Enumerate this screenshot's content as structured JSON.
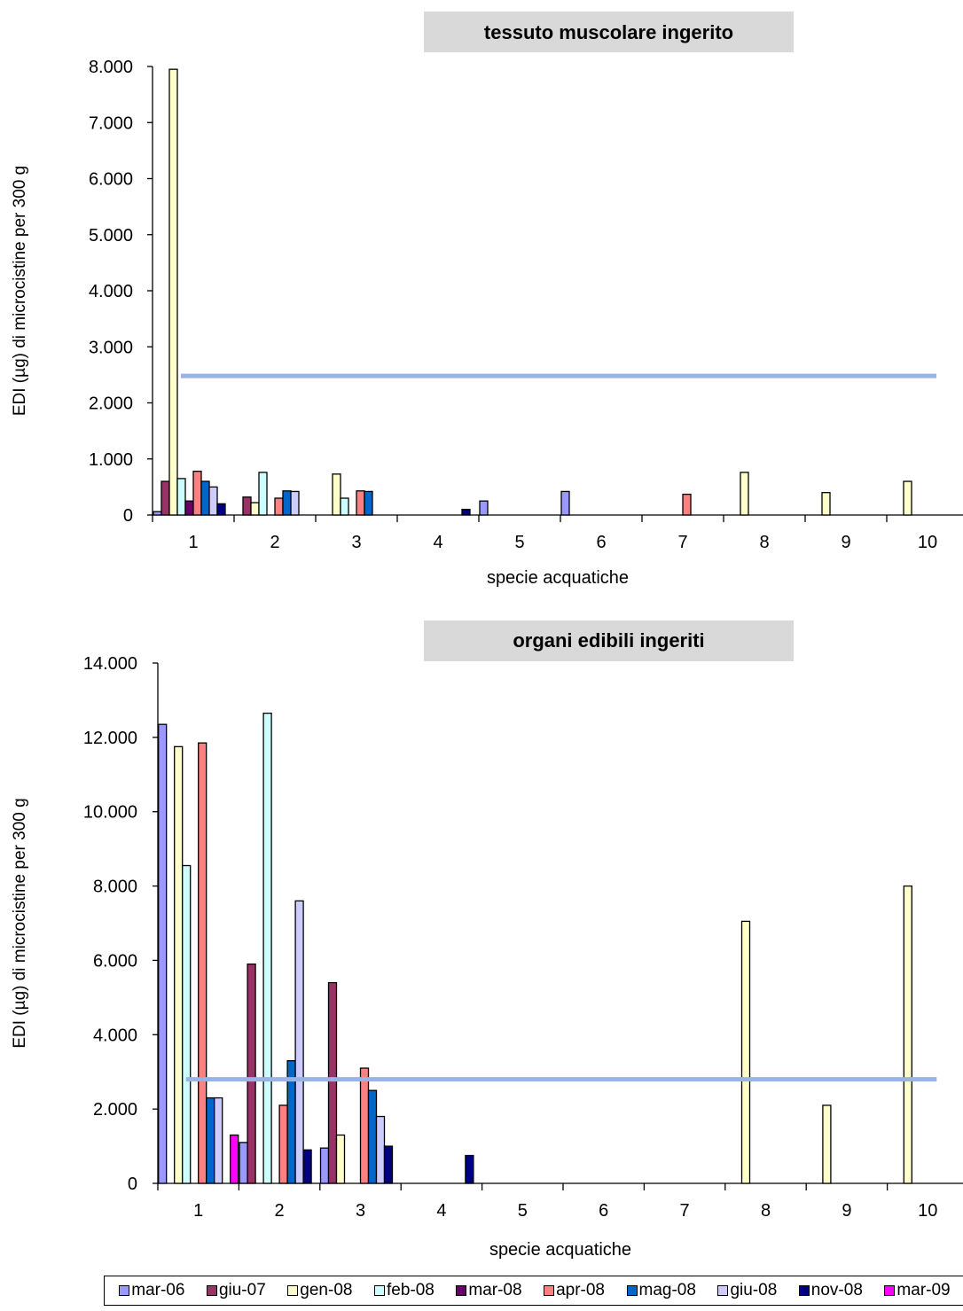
{
  "legend": [
    "mar-06",
    "giu-07",
    "gen-08",
    "feb-08",
    "mar-08",
    "apr-08",
    "mag-08",
    "giu-08",
    "nov-08",
    "mar-09"
  ],
  "series_colors": [
    "#9999ff",
    "#993366",
    "#ffffcc",
    "#ccffff",
    "#660066",
    "#ff8080",
    "#0066cc",
    "#ccccff",
    "#000080",
    "#ff00ff"
  ],
  "chart_data": [
    {
      "type": "bar",
      "title": "tessuto muscolare ingerito",
      "xlabel": "specie acquatiche",
      "ylabel": "EDI (µg) di microcistine per  300 g",
      "categories": [
        "1",
        "2",
        "3",
        "4",
        "5",
        "6",
        "7",
        "8",
        "9",
        "10"
      ],
      "ylim": [
        0,
        8000
      ],
      "yticks": [
        0,
        1000,
        2000,
        3000,
        4000,
        5000,
        6000,
        7000,
        8000
      ],
      "ytick_labels": [
        "0",
        "1.000",
        "2.000",
        "3.000",
        "4.000",
        "5.000",
        "6.000",
        "7.000",
        "8.000"
      ],
      "reference_line": {
        "value": 2480,
        "x_from": "1",
        "x_to": "10",
        "color": "#99b3e6"
      },
      "series": [
        {
          "name": "mar-06",
          "values": [
            60,
            null,
            null,
            null,
            250,
            420,
            null,
            null,
            null,
            null
          ]
        },
        {
          "name": "giu-07",
          "values": [
            600,
            320,
            null,
            null,
            null,
            null,
            null,
            null,
            null,
            null
          ]
        },
        {
          "name": "gen-08",
          "values": [
            7950,
            220,
            730,
            null,
            null,
            null,
            null,
            760,
            400,
            600
          ]
        },
        {
          "name": "feb-08",
          "values": [
            650,
            760,
            300,
            null,
            null,
            null,
            null,
            null,
            null,
            null
          ]
        },
        {
          "name": "mar-08",
          "values": [
            250,
            null,
            null,
            null,
            null,
            null,
            null,
            null,
            null,
            null
          ]
        },
        {
          "name": "apr-08",
          "values": [
            780,
            300,
            430,
            null,
            null,
            null,
            370,
            null,
            null,
            null
          ]
        },
        {
          "name": "mag-08",
          "values": [
            600,
            430,
            420,
            null,
            null,
            null,
            null,
            null,
            null,
            null
          ]
        },
        {
          "name": "giu-08",
          "values": [
            500,
            420,
            null,
            null,
            null,
            null,
            null,
            null,
            null,
            null
          ]
        },
        {
          "name": "nov-08",
          "values": [
            200,
            null,
            null,
            100,
            null,
            null,
            null,
            null,
            null,
            null
          ]
        },
        {
          "name": "mar-09",
          "values": [
            null,
            null,
            null,
            null,
            null,
            null,
            null,
            null,
            null,
            null
          ]
        }
      ]
    },
    {
      "type": "bar",
      "title": "organi edibili ingeriti",
      "xlabel": "specie acquatiche",
      "ylabel": "EDI  (µg)  di microcistine per 300 g",
      "categories": [
        "1",
        "2",
        "3",
        "4",
        "5",
        "6",
        "7",
        "8",
        "9",
        "10"
      ],
      "ylim": [
        0,
        14000
      ],
      "yticks": [
        0,
        2000,
        4000,
        6000,
        8000,
        10000,
        12000,
        14000
      ],
      "ytick_labels": [
        "0",
        "2.000",
        "4.000",
        "6.000",
        "8.000",
        "10.000",
        "12.000",
        "14.000"
      ],
      "reference_line": {
        "value": 2800,
        "x_from": "1",
        "x_to": "10",
        "color": "#99b3e6"
      },
      "series": [
        {
          "name": "mar-06",
          "values": [
            12350,
            1100,
            950,
            null,
            null,
            null,
            null,
            null,
            null,
            null
          ]
        },
        {
          "name": "giu-07",
          "values": [
            null,
            5900,
            5400,
            null,
            null,
            null,
            null,
            null,
            null,
            null
          ]
        },
        {
          "name": "gen-08",
          "values": [
            11750,
            null,
            1300,
            null,
            null,
            null,
            null,
            7050,
            2100,
            8000
          ]
        },
        {
          "name": "feb-08",
          "values": [
            8550,
            12650,
            null,
            null,
            null,
            null,
            null,
            null,
            null,
            null
          ]
        },
        {
          "name": "mar-08",
          "values": [
            null,
            null,
            null,
            null,
            null,
            null,
            null,
            null,
            null,
            null
          ]
        },
        {
          "name": "apr-08",
          "values": [
            11850,
            2100,
            3100,
            null,
            null,
            null,
            null,
            null,
            null,
            null
          ]
        },
        {
          "name": "mag-08",
          "values": [
            2300,
            3300,
            2500,
            null,
            null,
            null,
            null,
            null,
            null,
            null
          ]
        },
        {
          "name": "giu-08",
          "values": [
            2300,
            7600,
            1800,
            null,
            null,
            null,
            null,
            null,
            null,
            null
          ]
        },
        {
          "name": "nov-08",
          "values": [
            null,
            900,
            1000,
            750,
            null,
            null,
            null,
            null,
            null,
            null
          ]
        },
        {
          "name": "mar-09",
          "values": [
            1300,
            null,
            null,
            null,
            null,
            null,
            null,
            null,
            null,
            null
          ]
        }
      ]
    }
  ]
}
